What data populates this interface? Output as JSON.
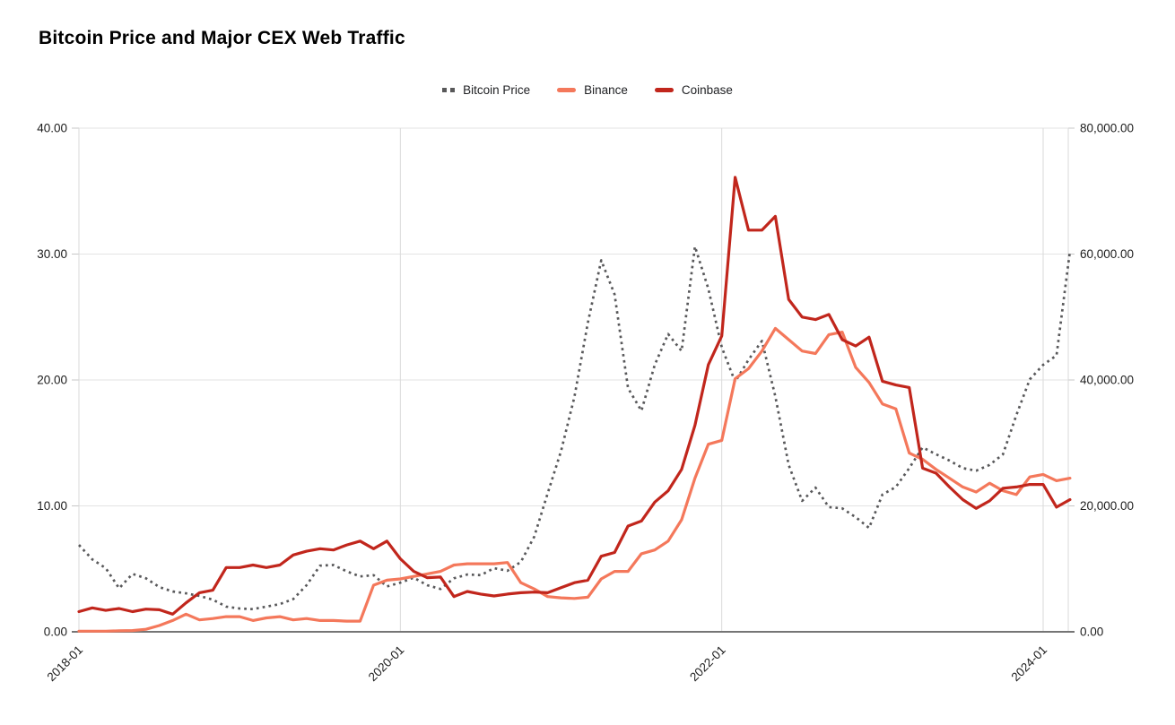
{
  "title": "Bitcoin Price and Major CEX Web Traffic",
  "legend": {
    "items": [
      {
        "label": "Bitcoin Price",
        "color": "#58585a",
        "style": "dotted"
      },
      {
        "label": "Binance",
        "color": "#f4785b",
        "style": "solid"
      },
      {
        "label": "Coinbase",
        "color": "#c1261c",
        "style": "solid"
      }
    ]
  },
  "colors": {
    "background": "#ffffff",
    "gridline": "#e3e3e3",
    "vertical_gridline": "#dadada",
    "axis_baseline": "#757575",
    "tick_stub": "#c7c7c7",
    "label_text": "#1c1c1c"
  },
  "chart_data": {
    "type": "line",
    "title": "Bitcoin Price and Major CEX Web Traffic",
    "x_interval": "monthly",
    "x_start": "2018-01",
    "x_end": "2024-03",
    "x_tick_labels": [
      "2018-01",
      "2020-01",
      "2022-01",
      "2024-01"
    ],
    "x_tick_month_index": [
      0,
      24,
      48,
      72
    ],
    "grid": true,
    "legend_position": "top",
    "left_axis": {
      "range": [
        0,
        40
      ],
      "tick_labels": [
        "0.00",
        "10.00",
        "20.00",
        "30.00",
        "40.00"
      ],
      "series": [
        "Binance",
        "Coinbase"
      ]
    },
    "right_axis": {
      "range": [
        0,
        80000
      ],
      "tick_labels": [
        "0.00",
        "20,000.00",
        "40,000.00",
        "60,000.00",
        "80,000.00"
      ],
      "series": [
        "Bitcoin Price"
      ]
    },
    "series": [
      {
        "name": "Bitcoin Price",
        "axis": "right",
        "style": "dotted",
        "color": "#58585a",
        "values": [
          13800,
          11500,
          10100,
          6900,
          9200,
          8500,
          7100,
          6400,
          6100,
          5700,
          5100,
          4000,
          3700,
          3600,
          4000,
          4400,
          5200,
          7400,
          10500,
          10600,
          9600,
          8800,
          9000,
          7200,
          7800,
          8600,
          7400,
          6800,
          8500,
          9100,
          9000,
          10100,
          9700,
          11100,
          15100,
          22000,
          28700,
          37300,
          49100,
          59000,
          53600,
          38700,
          35100,
          42400,
          47300,
          44600,
          61200,
          54500,
          45200,
          39700,
          43200,
          46200,
          37400,
          26500,
          20800,
          22900,
          19800,
          19600,
          18200,
          16500,
          21800,
          23000,
          26000,
          29300,
          28200,
          27200,
          26000,
          25600,
          26500,
          28200,
          34400,
          40100,
          42400,
          43900,
          60500
        ]
      },
      {
        "name": "Binance",
        "axis": "left",
        "style": "solid",
        "color": "#f4785b",
        "values": [
          0.05,
          0.05,
          0.05,
          0.08,
          0.1,
          0.2,
          0.5,
          0.9,
          1.4,
          0.95,
          1.05,
          1.2,
          1.2,
          0.9,
          1.1,
          1.2,
          0.95,
          1.05,
          0.9,
          0.9,
          0.85,
          0.85,
          3.7,
          4.1,
          4.2,
          4.4,
          4.6,
          4.8,
          5.3,
          5.4,
          5.4,
          5.4,
          5.5,
          3.9,
          3.4,
          2.8,
          2.7,
          2.65,
          2.75,
          4.2,
          4.8,
          4.8,
          6.2,
          6.5,
          7.2,
          8.9,
          12.2,
          14.9,
          15.2,
          20.1,
          20.9,
          22.3,
          24.1,
          23.2,
          22.3,
          22.1,
          23.6,
          23.8,
          21.0,
          19.8,
          18.1,
          17.7,
          14.2,
          13.7,
          12.9,
          12.2,
          11.5,
          11.1,
          11.8,
          11.2,
          10.9,
          12.3,
          12.5,
          12.0,
          12.2
        ]
      },
      {
        "name": "Coinbase",
        "axis": "left",
        "style": "solid",
        "color": "#c1261c",
        "values": [
          1.6,
          1.9,
          1.7,
          1.85,
          1.6,
          1.8,
          1.75,
          1.4,
          2.3,
          3.1,
          3.3,
          5.1,
          5.1,
          5.3,
          5.1,
          5.3,
          6.1,
          6.4,
          6.6,
          6.5,
          6.9,
          7.2,
          6.6,
          7.2,
          5.8,
          4.8,
          4.3,
          4.35,
          2.8,
          3.2,
          3.0,
          2.85,
          3.0,
          3.1,
          3.15,
          3.1,
          3.5,
          3.9,
          4.1,
          6.0,
          6.3,
          8.4,
          8.8,
          10.3,
          11.2,
          12.9,
          16.4,
          21.2,
          23.5,
          36.1,
          31.9,
          31.9,
          33.0,
          26.4,
          25.0,
          24.8,
          25.2,
          23.2,
          22.7,
          23.4,
          19.9,
          19.6,
          19.4,
          13.0,
          12.6,
          11.5,
          10.5,
          9.8,
          10.4,
          11.4,
          11.5,
          11.7,
          11.7,
          9.9,
          10.5
        ]
      }
    ]
  }
}
